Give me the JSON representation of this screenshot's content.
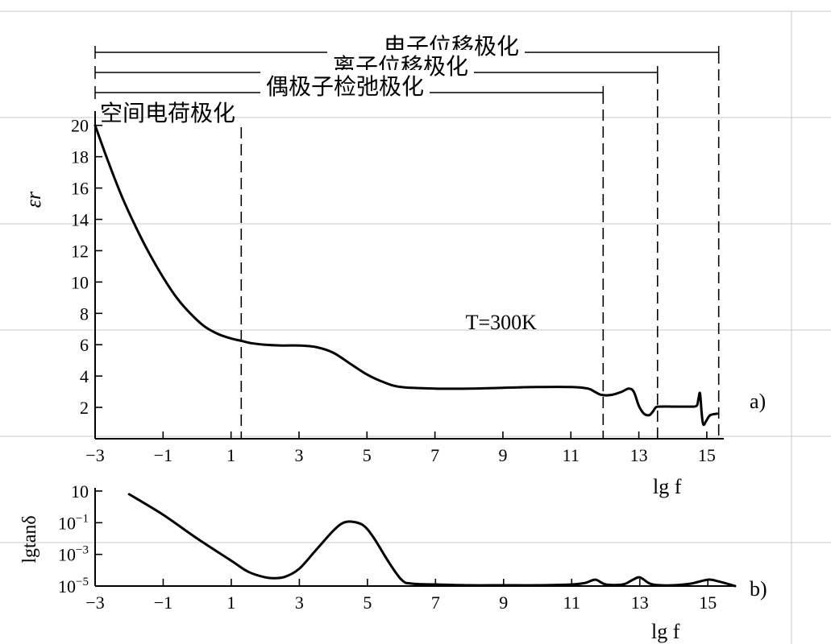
{
  "chart_data": [
    {
      "id": "a",
      "type": "line",
      "panel_label": "a)",
      "xlabel": "lg f",
      "ylabel": "εr",
      "xlim": [
        -3,
        15.5
      ],
      "ylim": [
        0,
        20.5
      ],
      "xticks": [
        -3,
        -1,
        1,
        3,
        5,
        7,
        9,
        11,
        13,
        15
      ],
      "yticks": [
        2,
        4,
        6,
        8,
        10,
        12,
        14,
        16,
        18,
        20
      ],
      "annotation": "T=300K",
      "annotation_at": {
        "x": 7.9,
        "y": 7.0
      },
      "series": [
        {
          "x": [
            -3,
            -2.6,
            -2.2,
            -1.8,
            -1.4,
            -1,
            -0.6,
            -0.2,
            0.2,
            0.6,
            1.0,
            1.3,
            1.6,
            2.0,
            2.5,
            3.0,
            3.5,
            4.0,
            4.5,
            5.0,
            5.5,
            6.0,
            7.0,
            8.0,
            9.0,
            10.0,
            11.0,
            11.5,
            11.7,
            11.9,
            12.2,
            12.5,
            12.7,
            12.85,
            13.0,
            13.15,
            13.3,
            13.4,
            13.5,
            13.6,
            14.0,
            14.5,
            14.7,
            14.75,
            14.8,
            14.85,
            14.9,
            15.0,
            15.1,
            15.3
          ],
          "y": [
            20,
            17.6,
            15.4,
            13.5,
            11.8,
            10.3,
            9.0,
            8.0,
            7.2,
            6.7,
            6.4,
            6.25,
            6.1,
            6.0,
            5.95,
            5.95,
            5.85,
            5.5,
            4.8,
            4.1,
            3.6,
            3.3,
            3.2,
            3.2,
            3.25,
            3.3,
            3.3,
            3.2,
            3.0,
            2.8,
            2.8,
            3.0,
            3.2,
            3.0,
            2.1,
            1.6,
            1.5,
            1.7,
            2.0,
            2.05,
            2.05,
            2.05,
            2.1,
            2.5,
            2.9,
            1.6,
            0.9,
            1.2,
            1.5,
            1.6
          ]
        }
      ],
      "dashed_lines_x": [
        1.3,
        11.95,
        13.55,
        15.35
      ],
      "mechanisms": [
        {
          "label": "电子位移极化",
          "x_end": 15.35
        },
        {
          "label": "离子位移极化",
          "x_end": 13.55
        },
        {
          "label": "偶极子检弛极化",
          "x_end": 11.95
        },
        {
          "label": "空间电荷极化",
          "x_end": 1.3
        }
      ]
    },
    {
      "id": "b",
      "type": "line",
      "panel_label": "b)",
      "xlabel": "lg f",
      "ylabel": "lgtanδ",
      "xlim": [
        -3,
        15.8
      ],
      "ylim": [
        -5,
        1
      ],
      "xticks": [
        -3,
        -1,
        1,
        3,
        5,
        7,
        9,
        11,
        13,
        15
      ],
      "yticks": [
        {
          "value": 1,
          "base": "10",
          "exp": ""
        },
        {
          "value": -1,
          "base": "10",
          "exp": "−1"
        },
        {
          "value": -3,
          "base": "10",
          "exp": "−3"
        },
        {
          "value": -5,
          "base": "10",
          "exp": "−5"
        }
      ],
      "series": [
        {
          "x": [
            -2,
            -1,
            0,
            1,
            1.5,
            2,
            2.3,
            2.6,
            3,
            3.5,
            4,
            4.3,
            4.6,
            4.9,
            5.2,
            5.6,
            6,
            6.3,
            7,
            8,
            9,
            10,
            11,
            11.4,
            11.7,
            12,
            12.5,
            12.8,
            13.0,
            13.3,
            13.6,
            14,
            14.5,
            15.0,
            15.3,
            15.8
          ],
          "y": [
            0.8,
            -0.5,
            -2.0,
            -3.4,
            -4.1,
            -4.45,
            -4.5,
            -4.4,
            -3.9,
            -2.7,
            -1.5,
            -1.0,
            -0.95,
            -1.2,
            -2.0,
            -3.4,
            -4.6,
            -4.85,
            -4.9,
            -4.95,
            -4.95,
            -4.95,
            -4.9,
            -4.8,
            -4.6,
            -4.9,
            -4.9,
            -4.6,
            -4.45,
            -4.85,
            -4.95,
            -4.95,
            -4.85,
            -4.6,
            -4.7,
            -5.0
          ]
        }
      ]
    }
  ]
}
